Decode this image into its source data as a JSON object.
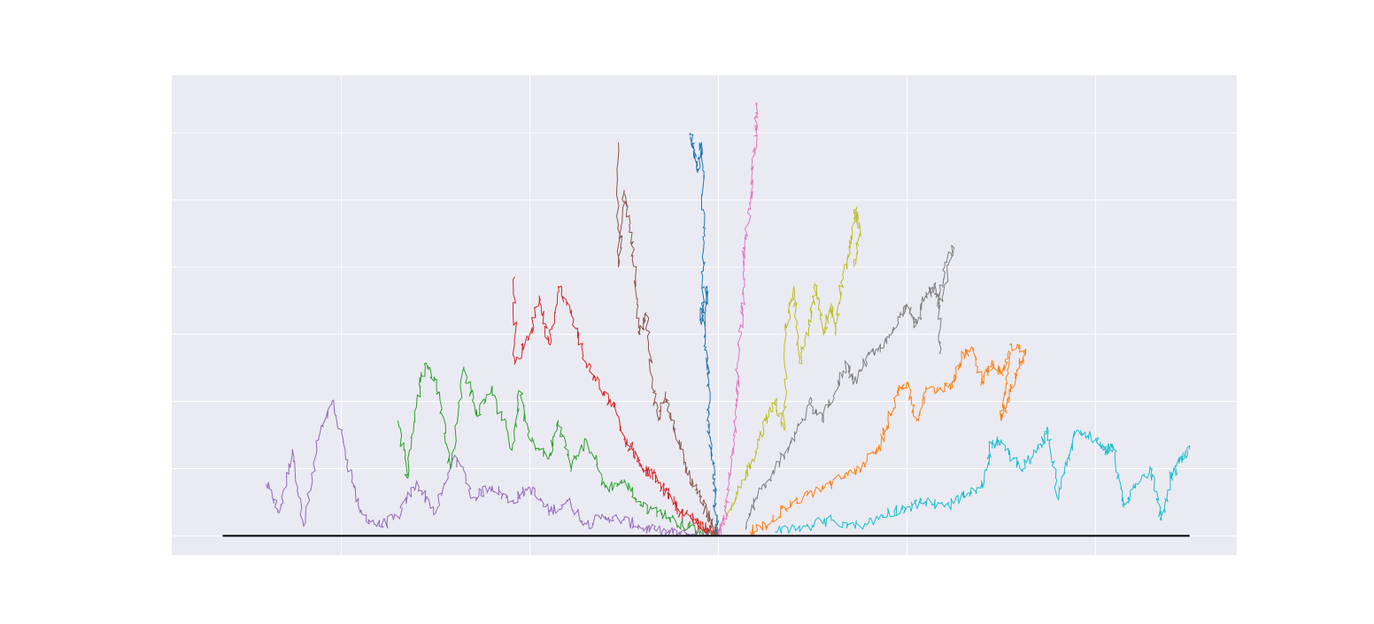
{
  "chart_data": {
    "type": "line",
    "title": "",
    "xlabel": "",
    "ylabel": "",
    "grid": true,
    "xlim": [
      -2.9,
      2.75
    ],
    "ylim": [
      -0.1,
      2.4
    ],
    "x_gridlines": [
      -2,
      -1,
      0,
      1,
      2
    ],
    "y_gridlines": [
      0,
      0.35,
      0.7,
      1.05,
      1.4,
      1.75,
      2.1
    ],
    "baseline": {
      "y": 0,
      "x_range": [
        -2.63,
        2.5
      ],
      "color": "#000000"
    },
    "background_color": "#eaeaf2",
    "series": [
      {
        "color": "#9467bd",
        "points": [
          [
            -2.4,
            0.27
          ],
          [
            -2.33,
            0.12
          ],
          [
            -2.26,
            0.45
          ],
          [
            -2.2,
            0.05
          ],
          [
            -2.12,
            0.5
          ],
          [
            -2.05,
            0.7
          ],
          [
            -1.98,
            0.45
          ],
          [
            -1.9,
            0.12
          ],
          [
            -1.8,
            0.05
          ],
          [
            -1.7,
            0.1
          ],
          [
            -1.6,
            0.28
          ],
          [
            -1.5,
            0.12
          ],
          [
            -1.4,
            0.42
          ],
          [
            -1.3,
            0.2
          ],
          [
            -1.2,
            0.26
          ],
          [
            -1.1,
            0.18
          ],
          [
            -1.0,
            0.25
          ],
          [
            -0.9,
            0.12
          ],
          [
            -0.8,
            0.18
          ],
          [
            -0.7,
            0.06
          ],
          [
            -0.6,
            0.1
          ],
          [
            -0.5,
            0.08
          ],
          [
            -0.4,
            0.04
          ],
          [
            -0.3,
            0.02
          ],
          [
            -0.2,
            0.01
          ],
          [
            -0.1,
            0.005
          ],
          [
            0,
            0
          ]
        ]
      },
      {
        "color": "#2ca02c",
        "points": [
          [
            -1.7,
            0.6
          ],
          [
            -1.65,
            0.3
          ],
          [
            -1.6,
            0.7
          ],
          [
            -1.55,
            0.9
          ],
          [
            -1.48,
            0.75
          ],
          [
            -1.42,
            0.35
          ],
          [
            -1.35,
            0.88
          ],
          [
            -1.28,
            0.62
          ],
          [
            -1.2,
            0.78
          ],
          [
            -1.1,
            0.45
          ],
          [
            -1.05,
            0.75
          ],
          [
            -1.0,
            0.5
          ],
          [
            -0.9,
            0.4
          ],
          [
            -0.85,
            0.6
          ],
          [
            -0.78,
            0.35
          ],
          [
            -0.7,
            0.5
          ],
          [
            -0.6,
            0.25
          ],
          [
            -0.5,
            0.28
          ],
          [
            -0.4,
            0.15
          ],
          [
            -0.3,
            0.12
          ],
          [
            -0.2,
            0.06
          ],
          [
            -0.1,
            0.03
          ],
          [
            0,
            0
          ]
        ]
      },
      {
        "color": "#d62728",
        "points": [
          [
            -1.08,
            1.35
          ],
          [
            -1.08,
            0.9
          ],
          [
            -1.0,
            1.05
          ],
          [
            -0.95,
            1.25
          ],
          [
            -0.9,
            1.0
          ],
          [
            -0.85,
            1.3
          ],
          [
            -0.78,
            1.15
          ],
          [
            -0.7,
            0.9
          ],
          [
            -0.62,
            0.75
          ],
          [
            -0.55,
            0.68
          ],
          [
            -0.5,
            0.5
          ],
          [
            -0.45,
            0.45
          ],
          [
            -0.4,
            0.35
          ],
          [
            -0.35,
            0.32
          ],
          [
            -0.3,
            0.25
          ],
          [
            -0.25,
            0.2
          ],
          [
            -0.2,
            0.12
          ],
          [
            -0.15,
            0.1
          ],
          [
            -0.1,
            0.06
          ],
          [
            -0.05,
            0.03
          ],
          [
            0,
            0
          ]
        ]
      },
      {
        "color": "#8c564b",
        "points": [
          [
            -0.53,
            2.05
          ],
          [
            -0.53,
            1.4
          ],
          [
            -0.5,
            1.8
          ],
          [
            -0.47,
            1.6
          ],
          [
            -0.44,
            1.35
          ],
          [
            -0.42,
            1.05
          ],
          [
            -0.38,
            1.15
          ],
          [
            -0.35,
            0.8
          ],
          [
            -0.32,
            0.6
          ],
          [
            -0.28,
            0.75
          ],
          [
            -0.25,
            0.6
          ],
          [
            -0.2,
            0.45
          ],
          [
            -0.15,
            0.3
          ],
          [
            -0.1,
            0.2
          ],
          [
            -0.06,
            0.12
          ],
          [
            -0.03,
            0.05
          ],
          [
            0,
            0
          ]
        ]
      },
      {
        "color": "#1f77b4",
        "points": [
          [
            -0.15,
            2.1
          ],
          [
            -0.13,
            2.0
          ],
          [
            -0.11,
            1.9
          ],
          [
            -0.09,
            2.05
          ],
          [
            -0.08,
            1.7
          ],
          [
            -0.08,
            1.4
          ],
          [
            -0.09,
            1.1
          ],
          [
            -0.06,
            1.3
          ],
          [
            -0.07,
            1.0
          ],
          [
            -0.05,
            0.8
          ],
          [
            -0.06,
            0.6
          ],
          [
            -0.04,
            0.45
          ],
          [
            -0.02,
            0.3
          ],
          [
            -0.02,
            0.15
          ],
          [
            0,
            0
          ]
        ]
      },
      {
        "color": "#e377c2",
        "points": [
          [
            0.2,
            2.25
          ],
          [
            0.2,
            2.1
          ],
          [
            0.18,
            1.9
          ],
          [
            0.17,
            1.7
          ],
          [
            0.13,
            1.5
          ],
          [
            0.14,
            1.3
          ],
          [
            0.12,
            1.1
          ],
          [
            0.1,
            0.9
          ],
          [
            0.1,
            0.7
          ],
          [
            0.08,
            0.5
          ],
          [
            0.06,
            0.3
          ],
          [
            0.04,
            0.15
          ],
          [
            0.02,
            0.05
          ],
          [
            0,
            0
          ]
        ]
      },
      {
        "color": "#bcbd22",
        "points": [
          [
            0.05,
            0.1
          ],
          [
            0.12,
            0.25
          ],
          [
            0.18,
            0.4
          ],
          [
            0.25,
            0.6
          ],
          [
            0.3,
            0.7
          ],
          [
            0.35,
            0.55
          ],
          [
            0.36,
            1.05
          ],
          [
            0.4,
            1.3
          ],
          [
            0.43,
            0.9
          ],
          [
            0.48,
            1.1
          ],
          [
            0.52,
            1.3
          ],
          [
            0.56,
            1.05
          ],
          [
            0.6,
            1.2
          ],
          [
            0.62,
            1.05
          ],
          [
            0.65,
            1.3
          ],
          [
            0.7,
            1.5
          ],
          [
            0.73,
            1.7
          ],
          [
            0.75,
            1.6
          ],
          [
            0.72,
            1.4
          ]
        ]
      },
      {
        "color": "#7f7f7f",
        "points": [
          [
            0.15,
            0.05
          ],
          [
            0.2,
            0.2
          ],
          [
            0.3,
            0.35
          ],
          [
            0.4,
            0.5
          ],
          [
            0.48,
            0.7
          ],
          [
            0.55,
            0.6
          ],
          [
            0.62,
            0.75
          ],
          [
            0.68,
            0.9
          ],
          [
            0.72,
            0.8
          ],
          [
            0.8,
            0.95
          ],
          [
            0.88,
            1.0
          ],
          [
            0.95,
            1.1
          ],
          [
            1.0,
            1.2
          ],
          [
            1.05,
            1.1
          ],
          [
            1.1,
            1.25
          ],
          [
            1.15,
            1.3
          ],
          [
            1.17,
            1.2
          ],
          [
            1.2,
            1.4
          ],
          [
            1.25,
            1.5
          ],
          [
            1.17,
            1.2
          ],
          [
            1.18,
            0.95
          ]
        ]
      },
      {
        "color": "#ff7f0e",
        "points": [
          [
            0.17,
            0.02
          ],
          [
            0.25,
            0.05
          ],
          [
            0.35,
            0.15
          ],
          [
            0.45,
            0.2
          ],
          [
            0.55,
            0.25
          ],
          [
            0.65,
            0.3
          ],
          [
            0.75,
            0.35
          ],
          [
            0.85,
            0.45
          ],
          [
            0.9,
            0.6
          ],
          [
            0.95,
            0.75
          ],
          [
            1.0,
            0.8
          ],
          [
            1.05,
            0.6
          ],
          [
            1.1,
            0.75
          ],
          [
            1.2,
            0.78
          ],
          [
            1.25,
            0.8
          ],
          [
            1.3,
            0.95
          ],
          [
            1.35,
            0.98
          ],
          [
            1.4,
            0.8
          ],
          [
            1.45,
            0.9
          ],
          [
            1.5,
            0.85
          ],
          [
            1.55,
            0.95
          ],
          [
            1.5,
            0.6
          ],
          [
            1.55,
            0.75
          ],
          [
            1.6,
            0.9
          ],
          [
            1.63,
            0.95
          ],
          [
            1.55,
            1.0
          ]
        ]
      },
      {
        "color": "#17becf",
        "points": [
          [
            0.3,
            0.02
          ],
          [
            0.45,
            0.05
          ],
          [
            0.6,
            0.08
          ],
          [
            0.75,
            0.05
          ],
          [
            0.9,
            0.12
          ],
          [
            1.0,
            0.15
          ],
          [
            1.1,
            0.18
          ],
          [
            1.2,
            0.15
          ],
          [
            1.3,
            0.2
          ],
          [
            1.4,
            0.25
          ],
          [
            1.45,
            0.48
          ],
          [
            1.5,
            0.5
          ],
          [
            1.6,
            0.35
          ],
          [
            1.7,
            0.45
          ],
          [
            1.75,
            0.55
          ],
          [
            1.8,
            0.2
          ],
          [
            1.85,
            0.4
          ],
          [
            1.9,
            0.55
          ],
          [
            2.0,
            0.5
          ],
          [
            2.05,
            0.45
          ],
          [
            2.1,
            0.45
          ],
          [
            2.15,
            0.15
          ],
          [
            2.2,
            0.25
          ],
          [
            2.3,
            0.35
          ],
          [
            2.35,
            0.08
          ],
          [
            2.4,
            0.3
          ],
          [
            2.45,
            0.4
          ],
          [
            2.5,
            0.45
          ]
        ]
      }
    ]
  }
}
